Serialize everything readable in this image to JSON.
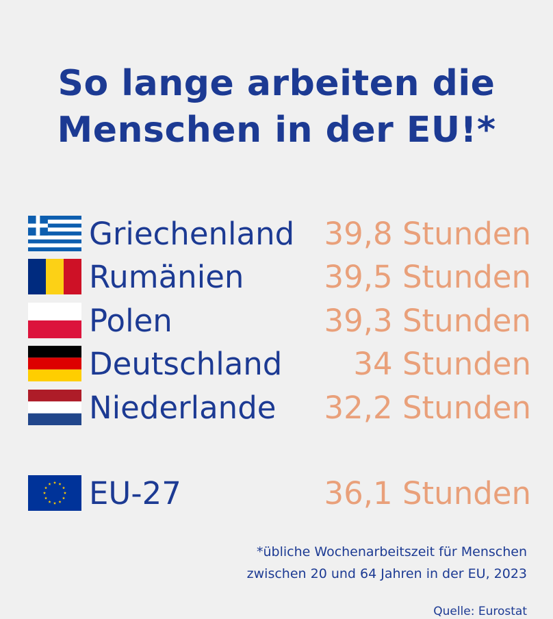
{
  "title": {
    "line1": "So lange arbeiten die",
    "line2": "Menschen in der EU!*"
  },
  "chart_data": {
    "type": "table",
    "rows": [
      {
        "country": "Griechenland",
        "flag": "greece-flag-icon",
        "value": 39.8,
        "label": "39,8 Stunden"
      },
      {
        "country": "Rumänien",
        "flag": "romania-flag-icon",
        "value": 39.5,
        "label": "39,5 Stunden"
      },
      {
        "country": "Polen",
        "flag": "poland-flag-icon",
        "value": 39.3,
        "label": "39,3 Stunden"
      },
      {
        "country": "Deutschland",
        "flag": "germany-flag-icon",
        "value": 34,
        "label": "34 Stunden"
      },
      {
        "country": "Niederlande",
        "flag": "netherlands-flag-icon",
        "value": 32.2,
        "label": "32,2 Stunden"
      }
    ],
    "average": {
      "country": "EU-27",
      "flag": "eu-flag-icon",
      "value": 36.1,
      "label": "36,1 Stunden"
    }
  },
  "footnote": {
    "line1": "*übliche Wochenarbeitszeit für Menschen",
    "line2": "zwischen 20 und 64 Jahren in der EU, 2023"
  },
  "source": "Quelle: Eurostat",
  "colors": {
    "title": "#1c3a93",
    "value": "#e9a07a",
    "background": "#f0f0f0"
  }
}
